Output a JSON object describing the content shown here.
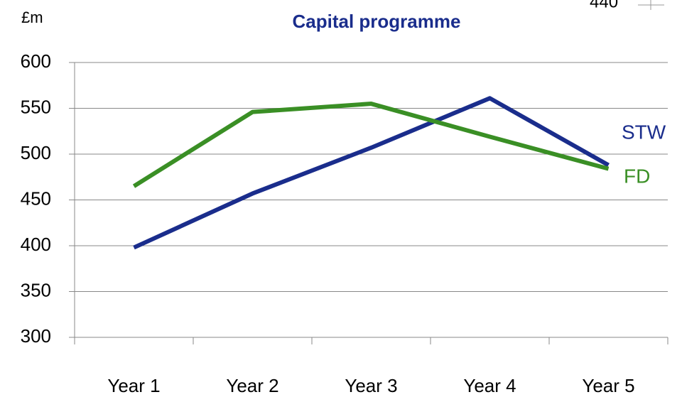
{
  "chart_data": {
    "type": "line",
    "title": "Capital programme",
    "y_label": "£m",
    "annotation": "440",
    "categories": [
      "Year 1",
      "Year 2",
      "Year 3",
      "Year 4",
      "Year 5"
    ],
    "series": [
      {
        "name": "STW",
        "color": "#1a2d8c",
        "values": [
          398,
          457,
          507,
          561,
          488
        ]
      },
      {
        "name": "FD",
        "color": "#3a8f25",
        "values": [
          465,
          546,
          555,
          519,
          484
        ]
      }
    ],
    "ylim": [
      300,
      600
    ],
    "yticks": [
      300,
      350,
      400,
      450,
      500,
      550,
      600
    ],
    "grid": true
  }
}
